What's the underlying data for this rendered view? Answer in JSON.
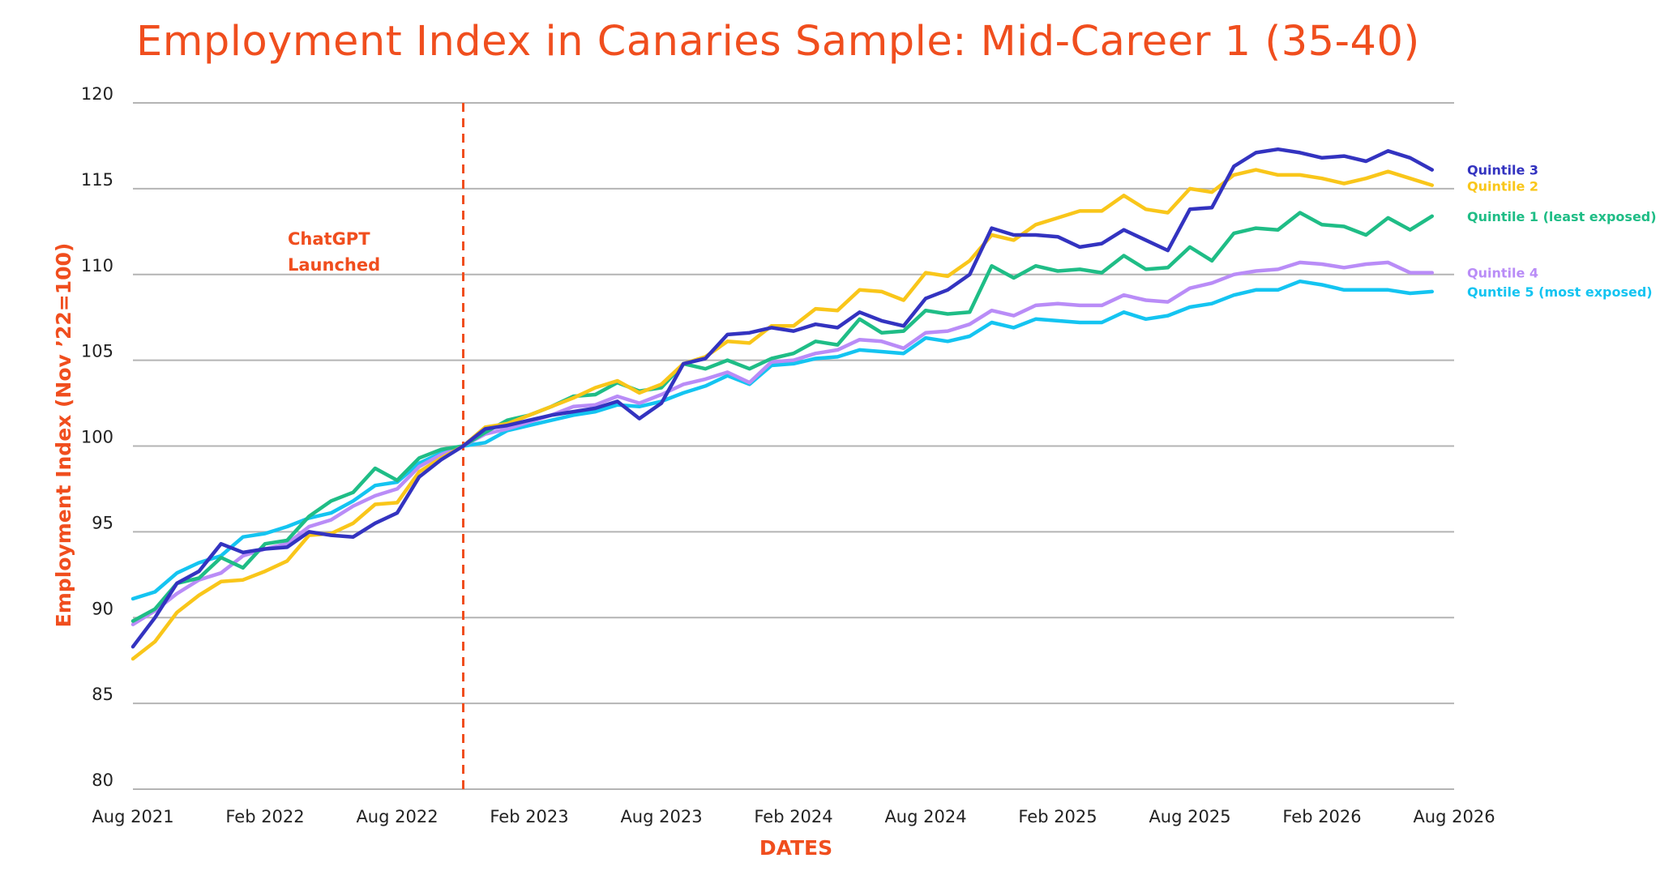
{
  "chart_data": {
    "type": "line",
    "title": "Employment Index in Canaries Sample: Mid-Career 1 (35-40)",
    "xlabel": "DATES",
    "ylabel": "Employment Index (Nov ’22=100)",
    "ylim": [
      80,
      120
    ],
    "yticks": [
      80,
      85,
      90,
      95,
      100,
      105,
      110,
      115,
      120
    ],
    "xlim": [
      "2021-08",
      "2026-08"
    ],
    "xticks": [
      "Aug 2021",
      "Feb 2022",
      "Aug 2022",
      "Feb 2023",
      "Aug 2023",
      "Feb 2024",
      "Aug 2024",
      "Feb 2025",
      "Aug 2025",
      "Feb 2026",
      "Aug 2026"
    ],
    "grid": "horizontal",
    "legend": "right",
    "annotations": [
      {
        "text": [
          "ChatGPT",
          "Launched"
        ],
        "x": "2022-11",
        "style": "dashed-vertical-line",
        "color": "#F04E1E"
      }
    ],
    "x": [
      "2021-08",
      "2021-09",
      "2021-10",
      "2021-11",
      "2021-12",
      "2022-01",
      "2022-02",
      "2022-03",
      "2022-04",
      "2022-05",
      "2022-06",
      "2022-07",
      "2022-08",
      "2022-09",
      "2022-10",
      "2022-11",
      "2022-12",
      "2023-01",
      "2023-02",
      "2023-03",
      "2023-04",
      "2023-05",
      "2023-06",
      "2023-07",
      "2023-08",
      "2023-09",
      "2023-10",
      "2023-11",
      "2023-12",
      "2024-01",
      "2024-02",
      "2024-03",
      "2024-04",
      "2024-05",
      "2024-06",
      "2024-07",
      "2024-08",
      "2024-09",
      "2024-10",
      "2024-11",
      "2024-12",
      "2025-01",
      "2025-02",
      "2025-03",
      "2025-04",
      "2025-05",
      "2025-06",
      "2025-07",
      "2025-08",
      "2025-09",
      "2025-10",
      "2025-11",
      "2025-12",
      "2026-01",
      "2026-02",
      "2026-03",
      "2026-04",
      "2026-05",
      "2026-06",
      "2026-07"
    ],
    "series": [
      {
        "name": "Quintile 3",
        "color": "#3333C0",
        "values": [
          88.3,
          90.0,
          92.0,
          92.7,
          94.3,
          93.8,
          94.0,
          94.1,
          95.0,
          94.8,
          94.7,
          95.5,
          96.1,
          98.2,
          99.2,
          100.0,
          101.0,
          101.2,
          101.5,
          101.8,
          102.0,
          102.2,
          102.6,
          101.6,
          102.5,
          104.8,
          105.1,
          106.5,
          106.6,
          106.9,
          106.7,
          107.1,
          106.9,
          107.8,
          107.3,
          107.0,
          108.6,
          109.1,
          110.0,
          112.7,
          112.3,
          112.3,
          112.2,
          111.6,
          111.8,
          112.6,
          112.0,
          111.4,
          113.8,
          113.9,
          116.3,
          117.1,
          117.3,
          117.1,
          116.8,
          116.9,
          116.6,
          117.2,
          116.8,
          116.1
        ]
      },
      {
        "name": "Quintile 2",
        "color": "#F9C61A",
        "values": [
          87.6,
          88.6,
          90.3,
          91.3,
          92.1,
          92.2,
          92.7,
          93.3,
          94.8,
          94.9,
          95.5,
          96.6,
          96.7,
          98.5,
          99.3,
          100.0,
          101.1,
          101.3,
          101.8,
          102.3,
          102.8,
          103.4,
          103.8,
          103.1,
          103.6,
          104.8,
          105.2,
          106.1,
          106.0,
          107.0,
          107.0,
          108.0,
          107.9,
          109.1,
          109.0,
          108.5,
          110.1,
          109.9,
          110.8,
          112.3,
          112.0,
          112.9,
          113.3,
          113.7,
          113.7,
          114.6,
          113.8,
          113.6,
          115.0,
          114.8,
          115.8,
          116.1,
          115.8,
          115.8,
          115.6,
          115.3,
          115.6,
          116.0,
          115.6,
          115.2
        ]
      },
      {
        "name": "Quintile 1 (least exposed)",
        "color": "#1FBD86",
        "values": [
          89.8,
          90.5,
          92.0,
          92.3,
          93.5,
          92.9,
          94.3,
          94.5,
          95.9,
          96.8,
          97.3,
          98.7,
          98.0,
          99.3,
          99.8,
          100.0,
          100.8,
          101.5,
          101.8,
          102.3,
          102.9,
          103.0,
          103.7,
          103.2,
          103.4,
          104.8,
          104.5,
          105.0,
          104.5,
          105.1,
          105.4,
          106.1,
          105.9,
          107.4,
          106.6,
          106.7,
          107.9,
          107.7,
          107.8,
          110.5,
          109.8,
          110.5,
          110.2,
          110.3,
          110.1,
          111.1,
          110.3,
          110.4,
          111.6,
          110.8,
          112.4,
          112.7,
          112.6,
          113.6,
          112.9,
          112.8,
          112.3,
          113.3,
          112.6,
          113.4
        ]
      },
      {
        "name": "Quintile 4",
        "color": "#B98CF7",
        "values": [
          89.6,
          90.4,
          91.4,
          92.2,
          92.6,
          93.6,
          94.0,
          94.3,
          95.3,
          95.7,
          96.5,
          97.1,
          97.5,
          98.8,
          99.5,
          100.0,
          100.7,
          101.0,
          101.4,
          101.8,
          102.3,
          102.4,
          102.9,
          102.5,
          103.0,
          103.6,
          103.9,
          104.3,
          103.7,
          104.9,
          105.0,
          105.4,
          105.6,
          106.2,
          106.1,
          105.7,
          106.6,
          106.7,
          107.1,
          107.9,
          107.6,
          108.2,
          108.3,
          108.2,
          108.2,
          108.8,
          108.5,
          108.4,
          109.2,
          109.5,
          110.0,
          110.2,
          110.3,
          110.7,
          110.6,
          110.4,
          110.6,
          110.7,
          110.1,
          110.1
        ]
      },
      {
        "name": "Quntile 5 (most exposed)",
        "color": "#14C4F1",
        "values": [
          91.1,
          91.5,
          92.6,
          93.2,
          93.6,
          94.7,
          94.9,
          95.3,
          95.8,
          96.1,
          96.8,
          97.7,
          97.9,
          99.0,
          99.6,
          100.0,
          100.2,
          100.9,
          101.2,
          101.5,
          101.8,
          102.0,
          102.4,
          102.3,
          102.6,
          103.1,
          103.5,
          104.1,
          103.6,
          104.7,
          104.8,
          105.1,
          105.2,
          105.6,
          105.5,
          105.4,
          106.3,
          106.1,
          106.4,
          107.2,
          106.9,
          107.4,
          107.3,
          107.2,
          107.2,
          107.8,
          107.4,
          107.6,
          108.1,
          108.3,
          108.8,
          109.1,
          109.1,
          109.6,
          109.4,
          109.1,
          109.1,
          109.1,
          108.9,
          109.0
        ]
      }
    ]
  }
}
